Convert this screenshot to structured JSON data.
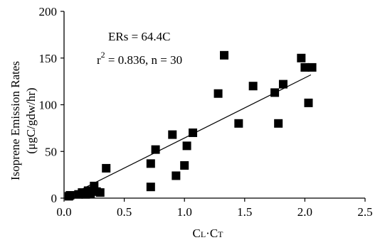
{
  "chart_data": {
    "type": "scatter",
    "xlabel_main": "C",
    "xlabel_sub1": "L",
    "xlabel_dot": "·C",
    "xlabel_sub2": "T",
    "ylabel_line1": "Isoprene Emission Rates",
    "ylabel_line2": "(μgC/gdw/hr)",
    "xlim": [
      0,
      2.5
    ],
    "ylim": [
      0,
      200
    ],
    "x_ticks": [
      "0.0",
      "0.5",
      "1.0",
      "1.5",
      "2.0",
      "2.5"
    ],
    "y_ticks": [
      "0",
      "50",
      "100",
      "150",
      "200"
    ],
    "grid": false,
    "annotations": {
      "equation": "ERs = 64.4C",
      "stats_r": "r",
      "stats_exp": "2",
      "stats_rest": " = 0.836, n = 30"
    },
    "fit": {
      "slope": 64.4,
      "x_range": [
        0.05,
        2.05
      ]
    },
    "points": [
      {
        "x": 0.04,
        "y": 2
      },
      {
        "x": 0.05,
        "y": 3
      },
      {
        "x": 0.12,
        "y": 4
      },
      {
        "x": 0.15,
        "y": 6
      },
      {
        "x": 0.18,
        "y": 4
      },
      {
        "x": 0.2,
        "y": 8
      },
      {
        "x": 0.22,
        "y": 5
      },
      {
        "x": 0.25,
        "y": 13
      },
      {
        "x": 0.27,
        "y": 7
      },
      {
        "x": 0.3,
        "y": 6
      },
      {
        "x": 0.35,
        "y": 32
      },
      {
        "x": 0.72,
        "y": 12
      },
      {
        "x": 0.72,
        "y": 37
      },
      {
        "x": 0.76,
        "y": 52
      },
      {
        "x": 0.9,
        "y": 68
      },
      {
        "x": 0.93,
        "y": 24
      },
      {
        "x": 1.0,
        "y": 35
      },
      {
        "x": 1.02,
        "y": 56
      },
      {
        "x": 1.07,
        "y": 70
      },
      {
        "x": 1.28,
        "y": 112
      },
      {
        "x": 1.33,
        "y": 153
      },
      {
        "x": 1.45,
        "y": 80
      },
      {
        "x": 1.57,
        "y": 120
      },
      {
        "x": 1.75,
        "y": 113
      },
      {
        "x": 1.78,
        "y": 80
      },
      {
        "x": 1.82,
        "y": 122
      },
      {
        "x": 1.97,
        "y": 150
      },
      {
        "x": 2.0,
        "y": 140
      },
      {
        "x": 2.03,
        "y": 102
      },
      {
        "x": 2.06,
        "y": 140
      }
    ],
    "marker_color": "#000000",
    "line_color": "#000000"
  }
}
